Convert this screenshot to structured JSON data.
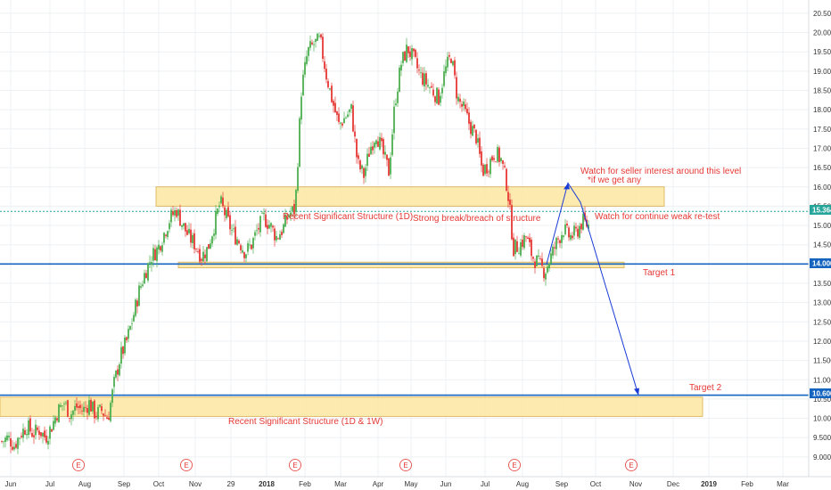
{
  "colors": {
    "up": "#4caf50",
    "down": "#e53935",
    "zone_fill": "#fce8a6",
    "zone_stroke": "#d4a53a",
    "support_line": "#1565c0",
    "arrow": "#1a3bd6",
    "annotation": "#e53935",
    "current_price": "#26a69a",
    "grid": "#eef0f3"
  },
  "chart_data": {
    "type": "candlestick",
    "y_axis": {
      "ticks": [
        "20.500",
        "20.000",
        "19.500",
        "19.000",
        "18.500",
        "18.000",
        "17.500",
        "17.000",
        "16.500",
        "16.000",
        "15.500",
        "15.000",
        "14.500",
        "14.000",
        "13.500",
        "13.000",
        "12.500",
        "12.000",
        "11.500",
        "11.000",
        "10.500",
        "10.000",
        "9.500",
        "9.000"
      ],
      "range": [
        8.9,
        20.7
      ]
    },
    "x_axis": {
      "ticks": [
        "Jun",
        "Jul",
        "Aug",
        "Sep",
        "Oct",
        "Nov",
        "29",
        "2018",
        "Feb",
        "Mar",
        "Apr",
        "May",
        "Jun",
        "Jul",
        "Aug",
        "Sep",
        "Oct",
        "Nov",
        "Dec",
        "2019",
        "Feb",
        "Mar"
      ],
      "bold_ticks": [
        "2018",
        "2019"
      ]
    },
    "current_price": "15.364",
    "series": [
      {
        "kind": "ohlc",
        "anchors": [
          9.4,
          9.5,
          9.3,
          9.6,
          9.8,
          9.6,
          9.7,
          9.5,
          9.8,
          10.2,
          10.4,
          10.1,
          10.3,
          10.2,
          10.4,
          10.1,
          10.2,
          10.0,
          10.9,
          11.6,
          12.0,
          12.6,
          13.3,
          13.8,
          14.2,
          14.4,
          14.8,
          15.2,
          15.4,
          15.0,
          14.7,
          14.5,
          14.2,
          14.4,
          15.0,
          15.6,
          15.2,
          14.8,
          14.6,
          14.3,
          14.5,
          14.9,
          15.2,
          15.0,
          14.7,
          14.9,
          15.3,
          15.4,
          18.5,
          19.5,
          19.7,
          19.8,
          18.9,
          18.2,
          17.6,
          17.8,
          18.0,
          16.6,
          16.3,
          17.0,
          17.4,
          16.9,
          16.4,
          18.2,
          19.2,
          19.6,
          19.3,
          18.9,
          18.7,
          18.5,
          18.3,
          19.0,
          19.4,
          18.3,
          18.0,
          17.6,
          17.3,
          16.4,
          16.6,
          16.9,
          16.7,
          16.0,
          14.4,
          14.5,
          14.7,
          14.2,
          14.0,
          13.8,
          14.2,
          14.6,
          14.9,
          14.7,
          14.8,
          15.1,
          15.0
        ],
        "seed": 7
      }
    ],
    "levels": [
      {
        "name": "support",
        "value": 14.0
      },
      {
        "name": "target",
        "value": 10.6
      }
    ],
    "zones": [
      {
        "label": "Recent Significant Structure (1D)",
        "y_low": 15.5,
        "y_high": 16.0
      },
      {
        "label": "",
        "y_low": 13.9,
        "y_high": 14.05
      },
      {
        "label": "Recent Significant Structure (1D & 1W)",
        "y_low": 10.05,
        "y_high": 10.55
      }
    ],
    "projection": [
      {
        "date": "Sep 2018",
        "price": 14.0
      },
      {
        "date": "Sep 2018",
        "price": 16.1
      },
      {
        "date": "Oct 2018",
        "price": 15.6
      },
      {
        "date": "Nov 2018",
        "price": 10.6
      }
    ],
    "annotations": [
      "Watch for seller interest around this level",
      "*if we get any",
      "Strong break/breach of structure",
      "Watch for continue weak re-test",
      "Target 1",
      "Target 2"
    ],
    "price_tags": [
      "15.364",
      "14.000",
      "10.600"
    ],
    "earnings_marker": "E"
  }
}
